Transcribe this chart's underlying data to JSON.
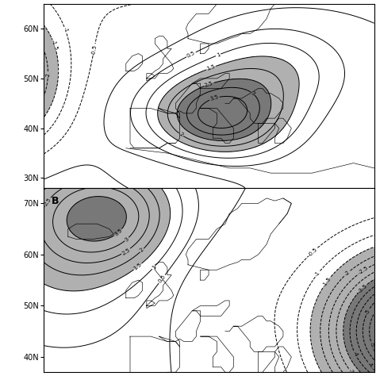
{
  "panel_B_label": "B",
  "lon_range": [
    -30,
    50
  ],
  "lat_range_A": [
    28,
    65
  ],
  "lat_range_B": [
    37,
    73
  ],
  "shading_color_light": "#b0b0b0",
  "shading_color_dark": "#787878",
  "background": "#ffffff",
  "ylabels_A": [
    [
      "60N",
      60
    ],
    [
      "50N",
      50
    ],
    [
      "40N",
      40
    ],
    [
      "30N",
      30
    ]
  ],
  "ylabels_B": [
    [
      "70N",
      70
    ],
    [
      "60N",
      60
    ],
    [
      "50N",
      50
    ],
    [
      "40N",
      40
    ]
  ],
  "tick_fontsize": 7,
  "clabel_fontsize": 5
}
